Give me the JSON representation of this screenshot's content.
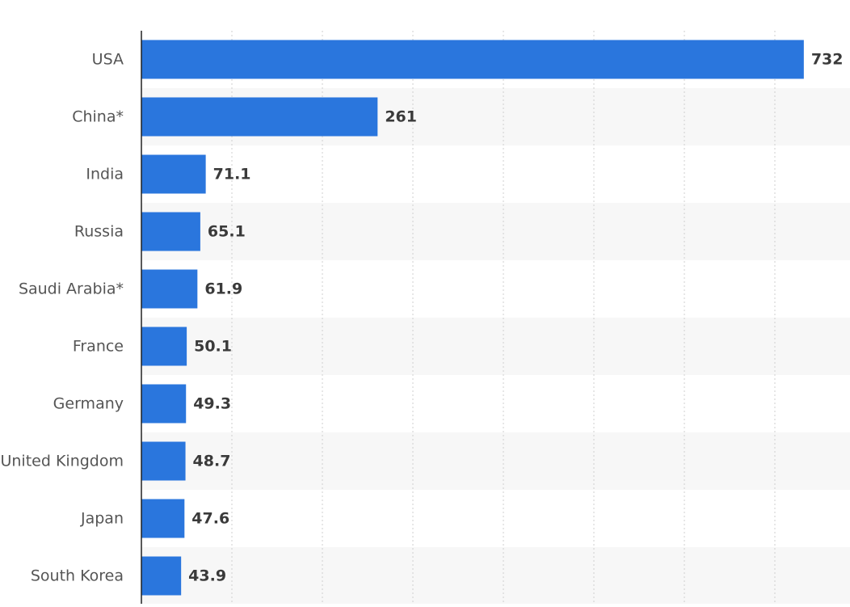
{
  "chart_data": {
    "type": "bar",
    "orientation": "horizontal",
    "categories": [
      "USA",
      "China*",
      "India",
      "Russia",
      "Saudi Arabia*",
      "France",
      "Germany",
      "United Kingdom",
      "Japan",
      "South Korea"
    ],
    "values": [
      732,
      261,
      71.1,
      65.1,
      61.9,
      50.1,
      49.3,
      48.7,
      47.6,
      43.9
    ],
    "value_labels": [
      "732",
      "261",
      "71.1",
      "65.1",
      "61.9",
      "50.1",
      "49.3",
      "48.7",
      "47.6",
      "43.9"
    ],
    "xlim": [
      0,
      800
    ],
    "grid": true,
    "bar_color": "#2a76dd",
    "band_color": "#f7f7f7"
  }
}
